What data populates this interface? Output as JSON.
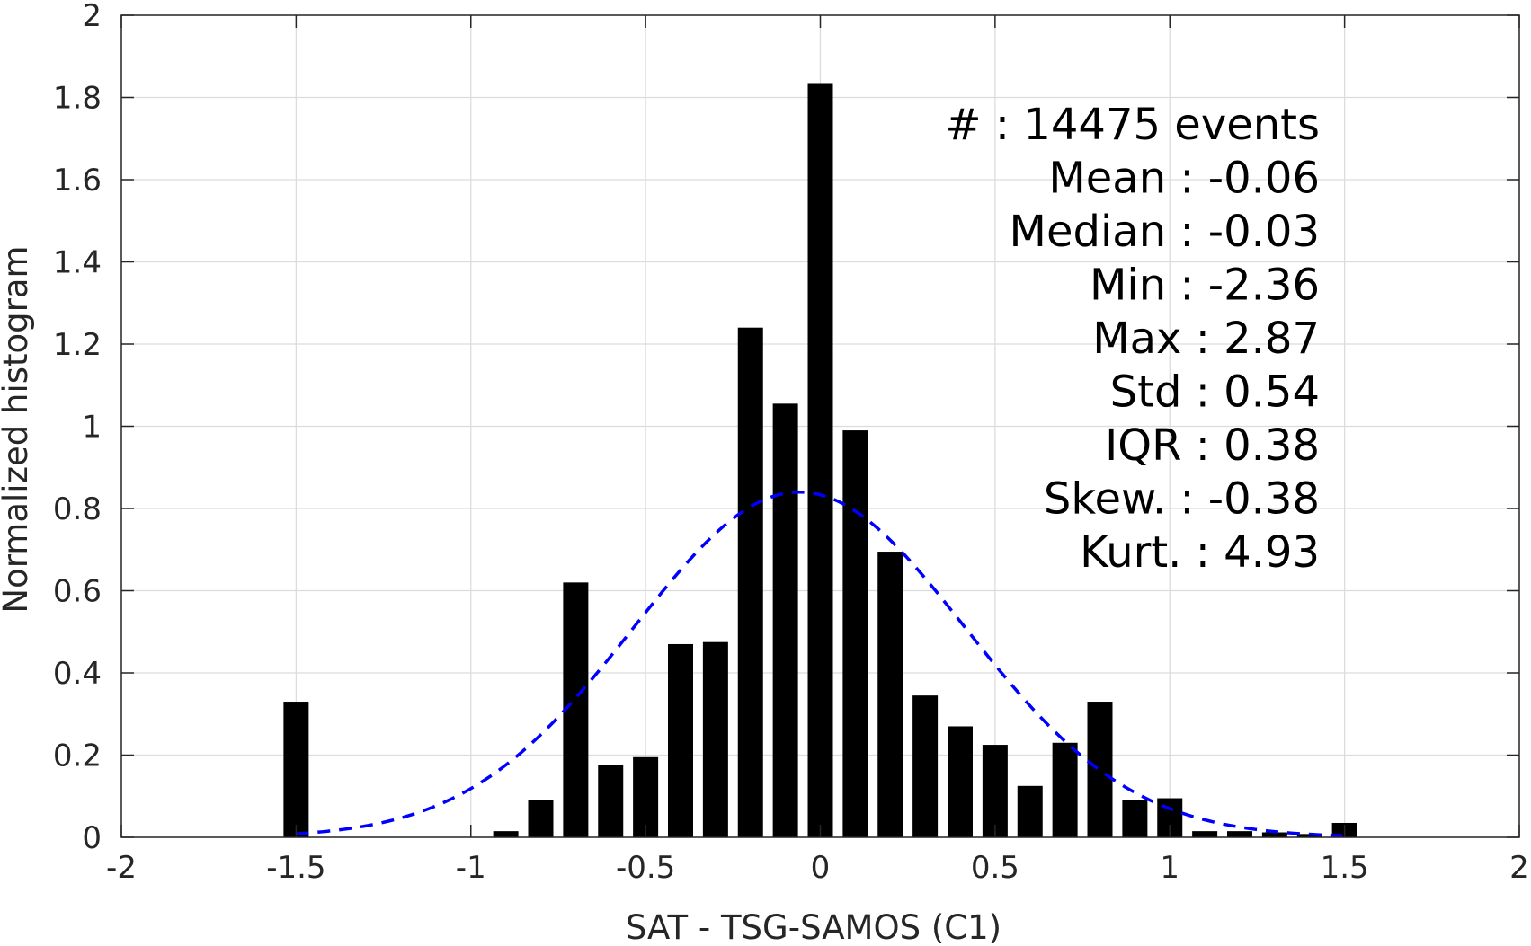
{
  "chart_data": {
    "type": "bar",
    "xlabel": "SAT - TSG-SAMOS (C1)",
    "ylabel": "Normalized histogram",
    "xlim": [
      -2,
      2
    ],
    "ylim": [
      0,
      2
    ],
    "xticks": [
      -2,
      -1.5,
      -1,
      -0.5,
      0,
      0.5,
      1,
      1.5,
      2
    ],
    "xtick_labels": [
      "-2",
      "-1.5",
      "-1",
      "-0.5",
      "0",
      "0.5",
      "1",
      "1.5",
      "2"
    ],
    "yticks": [
      0,
      0.2,
      0.4,
      0.6,
      0.8,
      1,
      1.2,
      1.4,
      1.6,
      1.8,
      2
    ],
    "ytick_labels": [
      "0",
      "0.2",
      "0.4",
      "0.6",
      "0.8",
      "1",
      "1.2",
      "1.4",
      "1.6",
      "1.8",
      "2"
    ],
    "grid": true,
    "bin_width": 0.1,
    "bars": {
      "x": [
        -1.5,
        -0.9,
        -0.8,
        -0.7,
        -0.6,
        -0.5,
        -0.4,
        -0.3,
        -0.2,
        -0.1,
        0.0,
        0.1,
        0.2,
        0.3,
        0.4,
        0.5,
        0.6,
        0.7,
        0.8,
        0.9,
        1.0,
        1.1,
        1.2,
        1.3,
        1.4,
        1.5
      ],
      "values": [
        0.33,
        0.015,
        0.09,
        0.62,
        0.175,
        0.195,
        0.47,
        0.475,
        1.24,
        1.055,
        1.835,
        0.99,
        0.695,
        0.345,
        0.27,
        0.225,
        0.125,
        0.23,
        0.33,
        0.09,
        0.095,
        0.015,
        0.015,
        0.012,
        0.008,
        0.035
      ],
      "color": "#000000"
    },
    "fit_curve": {
      "type": "normal",
      "mean": -0.06,
      "std": 0.475,
      "peak": 0.84,
      "x_range": [
        -1.5,
        1.5
      ],
      "color": "#0000ff",
      "style": "dashed"
    },
    "stats_lines": [
      "#  : 14475 events",
      "Mean : -0.06",
      "Median : -0.03",
      "Min : -2.36",
      "Max : 2.87",
      "Std : 0.54",
      "IQR : 0.38",
      "Skew. : -0.38",
      "Kurt. : 4.93"
    ]
  }
}
